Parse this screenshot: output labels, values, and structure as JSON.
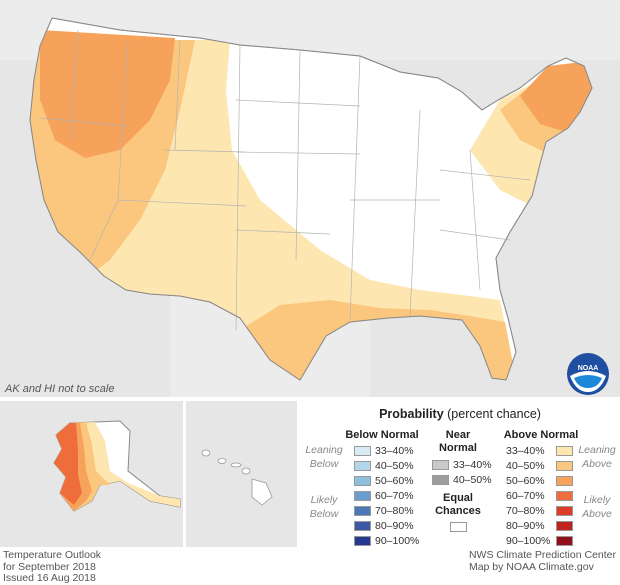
{
  "map": {
    "scale_note": "AK and HI not to scale",
    "logo_text": "NOAA"
  },
  "legend": {
    "title_bold": "Probability",
    "title_rest": " (percent chance)",
    "below": {
      "header": "Below Normal",
      "items": [
        {
          "label": "33–40%",
          "color": "#d9ecf6"
        },
        {
          "label": "40–50%",
          "color": "#b3d7ea"
        },
        {
          "label": "50–60%",
          "color": "#8ec0dd"
        },
        {
          "label": "60–70%",
          "color": "#6a9ccd"
        },
        {
          "label": "70–80%",
          "color": "#4e79b8"
        },
        {
          "label": "80–90%",
          "color": "#3b59a5"
        },
        {
          "label": "90–100%",
          "color": "#283a8f"
        }
      ]
    },
    "near": {
      "header_line1": "Near",
      "header_line2": "Normal",
      "items": [
        {
          "label": "33–40%",
          "color": "#c9c9c9"
        },
        {
          "label": "40–50%",
          "color": "#9e9e9e"
        }
      ]
    },
    "equal": {
      "label_line1": "Equal",
      "label_line2": "Chances",
      "color": "#ffffff"
    },
    "above": {
      "header": "Above Normal",
      "items": [
        {
          "label": "33–40%",
          "color": "#fde6b0"
        },
        {
          "label": "40–50%",
          "color": "#fbc77e"
        },
        {
          "label": "50–60%",
          "color": "#f7a25a"
        },
        {
          "label": "60–70%",
          "color": "#ef6d3a"
        },
        {
          "label": "70–80%",
          "color": "#dd3c28"
        },
        {
          "label": "80–90%",
          "color": "#c02420"
        },
        {
          "label": "90–100%",
          "color": "#8f1018"
        }
      ]
    },
    "leaning_below_l1": "Leaning",
    "leaning_below_l2": "Below",
    "likely_below_l1": "Likely",
    "likely_below_l2": "Below",
    "leaning_above_l1": "Leaning",
    "leaning_above_l2": "Above",
    "likely_above_l1": "Likely",
    "likely_above_l2": "Above"
  },
  "footer": {
    "left_line1": "Temperature Outlook",
    "left_line2": "for September 2018",
    "left_line3": "Issued 16 Aug 2018",
    "right_line1": "NWS Climate Prediction Center",
    "right_line2": "Map by NOAA Climate.gov"
  }
}
